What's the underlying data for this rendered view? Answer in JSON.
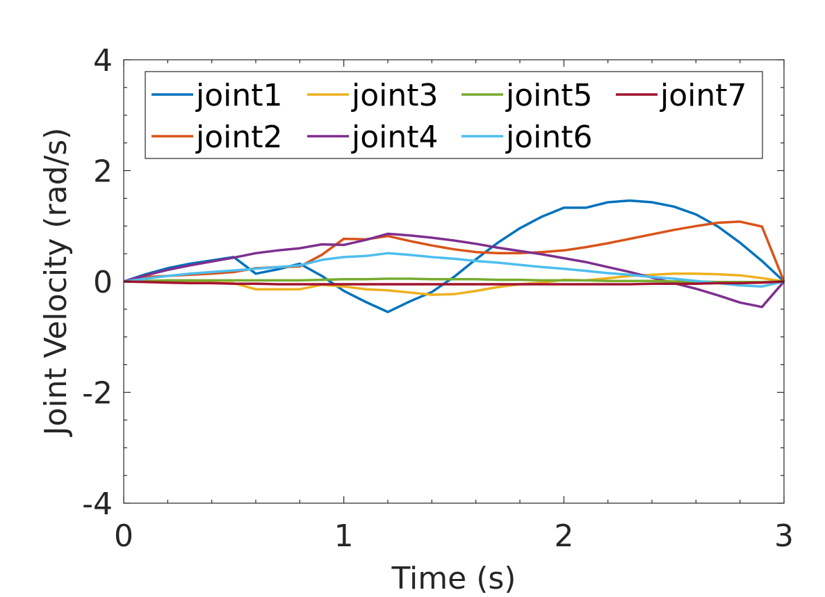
{
  "chart_data": {
    "type": "line",
    "title": "",
    "xlabel": "Time (s)",
    "ylabel": "Joint Velocity (rad/s)",
    "xlim": [
      0,
      3
    ],
    "ylim": [
      -4,
      4
    ],
    "xticks": [
      0,
      1,
      2,
      3
    ],
    "yticks": [
      -4,
      -2,
      0,
      2,
      4
    ],
    "xtick_labels": [
      "0",
      "1",
      "2",
      "3"
    ],
    "ytick_labels": [
      "-4",
      "-2",
      "0",
      "2",
      "4"
    ],
    "grid": false,
    "legend_position": "top",
    "x": [
      0,
      0.1,
      0.2,
      0.3,
      0.4,
      0.5,
      0.6,
      0.7,
      0.8,
      0.9,
      1.0,
      1.1,
      1.2,
      1.3,
      1.4,
      1.5,
      1.6,
      1.7,
      1.8,
      1.9,
      2.0,
      2.1,
      2.2,
      2.3,
      2.4,
      2.5,
      2.6,
      2.7,
      2.8,
      2.9,
      3.0
    ],
    "series": [
      {
        "name": "joint1",
        "color": "#0072BD",
        "values": [
          0,
          0.13,
          0.24,
          0.32,
          0.38,
          0.44,
          0.14,
          0.22,
          0.32,
          0.1,
          -0.17,
          -0.37,
          -0.55,
          -0.36,
          -0.19,
          0.08,
          0.4,
          0.7,
          0.96,
          1.17,
          1.33,
          1.33,
          1.43,
          1.46,
          1.43,
          1.35,
          1.21,
          0.99,
          0.7,
          0.37,
          0
        ]
      },
      {
        "name": "joint2",
        "color": "#D95319",
        "values": [
          0,
          0.08,
          0.1,
          0.12,
          0.14,
          0.17,
          0.24,
          0.26,
          0.27,
          0.48,
          0.77,
          0.76,
          0.82,
          0.73,
          0.65,
          0.58,
          0.53,
          0.51,
          0.51,
          0.53,
          0.56,
          0.62,
          0.69,
          0.77,
          0.85,
          0.93,
          1.0,
          1.06,
          1.08,
          0.99,
          0
        ]
      },
      {
        "name": "joint3",
        "color": "#EDB120",
        "values": [
          0,
          -0.01,
          -0.02,
          -0.02,
          -0.02,
          -0.03,
          -0.14,
          -0.14,
          -0.14,
          -0.06,
          -0.09,
          -0.14,
          -0.16,
          -0.2,
          -0.24,
          -0.23,
          -0.17,
          -0.1,
          -0.05,
          -0.02,
          0.03,
          0.02,
          0.06,
          0.1,
          0.12,
          0.14,
          0.14,
          0.13,
          0.11,
          0.06,
          0
        ]
      },
      {
        "name": "joint4",
        "color": "#7E2F8E",
        "values": [
          0,
          0.11,
          0.21,
          0.29,
          0.36,
          0.43,
          0.51,
          0.56,
          0.6,
          0.67,
          0.66,
          0.75,
          0.86,
          0.83,
          0.79,
          0.74,
          0.68,
          0.61,
          0.55,
          0.49,
          0.42,
          0.35,
          0.26,
          0.17,
          0.07,
          -0.03,
          -0.13,
          -0.25,
          -0.38,
          -0.46,
          0
        ]
      },
      {
        "name": "joint5",
        "color": "#77AC30",
        "values": [
          0,
          0.01,
          0.02,
          0.02,
          0.02,
          0.02,
          0.02,
          0.02,
          0.02,
          0.03,
          0.04,
          0.04,
          0.05,
          0.05,
          0.04,
          0.04,
          0.04,
          0.03,
          0.03,
          0.02,
          0.02,
          0.02,
          0.01,
          0.01,
          0.01,
          0.0,
          0.0,
          -0.01,
          -0.01,
          -0.01,
          0
        ]
      },
      {
        "name": "joint6",
        "color": "#4DBEEE",
        "values": [
          0,
          0.05,
          0.1,
          0.14,
          0.17,
          0.2,
          0.23,
          0.26,
          0.29,
          0.39,
          0.44,
          0.46,
          0.51,
          0.48,
          0.44,
          0.41,
          0.37,
          0.34,
          0.3,
          0.26,
          0.23,
          0.19,
          0.15,
          0.12,
          0.08,
          0.05,
          0.01,
          -0.03,
          -0.07,
          -0.09,
          0
        ]
      },
      {
        "name": "joint7",
        "color": "#A2142F",
        "values": [
          0,
          -0.01,
          -0.02,
          -0.03,
          -0.03,
          -0.04,
          -0.04,
          -0.05,
          -0.05,
          -0.05,
          -0.05,
          -0.05,
          -0.05,
          -0.05,
          -0.05,
          -0.05,
          -0.05,
          -0.05,
          -0.05,
          -0.05,
          -0.05,
          -0.05,
          -0.05,
          -0.05,
          -0.04,
          -0.04,
          -0.04,
          -0.03,
          -0.03,
          -0.02,
          0
        ]
      }
    ]
  }
}
